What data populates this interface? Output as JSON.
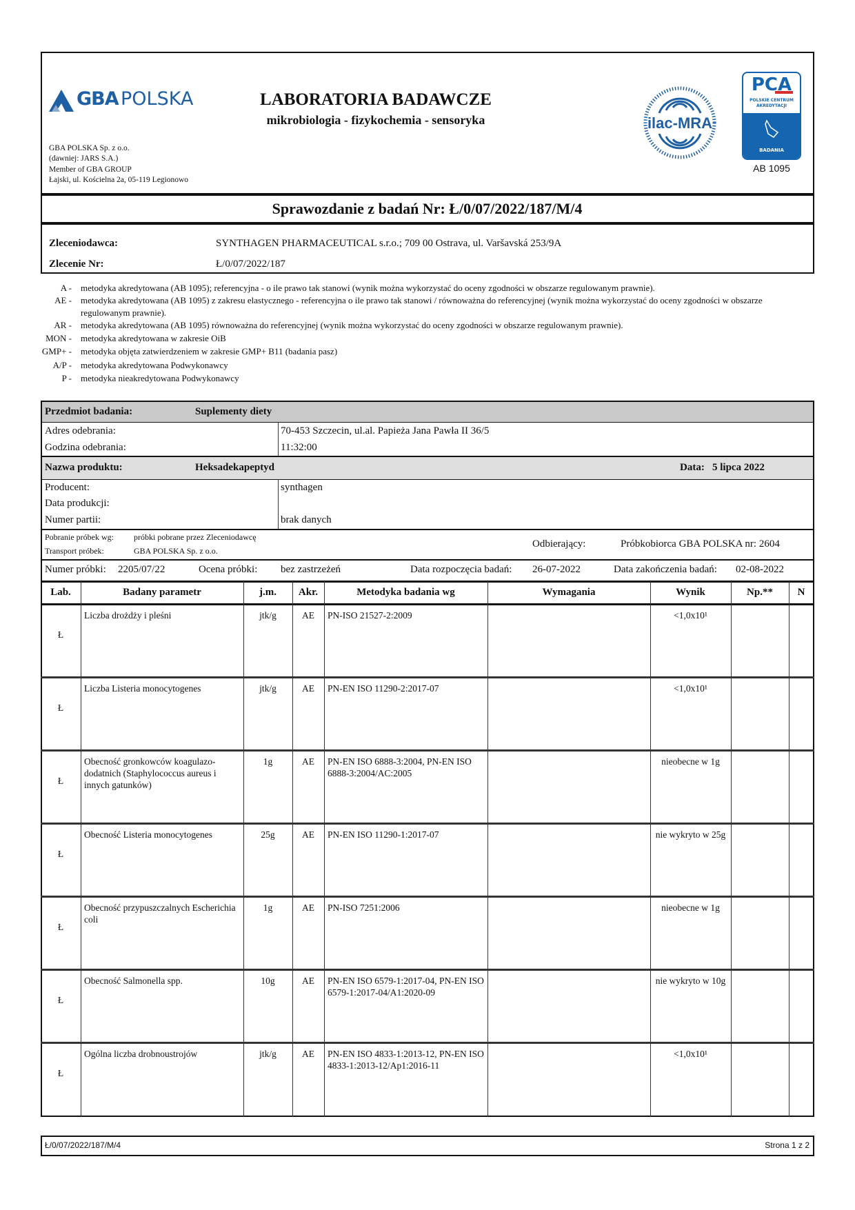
{
  "header": {
    "logo_text_bold": "GBA",
    "logo_text_light": "POLSKA",
    "lab_title": "LABORATORIA BADAWCZE",
    "lab_subtitle": "mikrobiologia - fizykochemia - sensoryka",
    "company_lines": [
      "GBA POLSKA Sp. z o.o.",
      "(dawniej: JARS S.A.)",
      "Member of GBA GROUP",
      "Łajski, ul. Kościelna 2a, 05-119 Legionowo"
    ],
    "ilac_logo": "ilac-MRA",
    "pca_logo": {
      "title": "PCA",
      "line1": "Polskie Centrum",
      "line2": "Akredytacji",
      "badge": "BADANIA"
    },
    "accreditation": "AB 1095",
    "colors": {
      "brand_blue": "#1f5fa3",
      "pca_blue": "#1565b0",
      "pca_red": "#d32f2f"
    }
  },
  "report_title": "Sprawozdanie z badań Nr: Ł/0/07/2022/187/M/4",
  "client": {
    "client_label": "Zleceniodawca:",
    "client_value": "SYNTHAGEN PHARMACEUTICAL s.r.o.; 709 00 Ostrava, ul. Varšavská  253/9A",
    "order_label": "Zlecenie Nr:",
    "order_value": "Ł/0/07/2022/187"
  },
  "legend": [
    {
      "code": "A -",
      "text": "metodyka akredytowana (AB 1095); referencyjna - o ile prawo tak stanowi (wynik można wykorzystać do oceny zgodności w obszarze regulowanym prawnie)."
    },
    {
      "code": "AE -",
      "text": "metodyka akredytowana (AB 1095) z zakresu elastycznego - referencyjna o ile prawo tak stanowi / równoważna do referencyjnej (wynik można wykorzystać do oceny zgodności w obszarze regulowanym prawnie)."
    },
    {
      "code": "AR -",
      "text": "metodyka akredytowana (AB 1095) równoważna do referencyjnej (wynik można wykorzystać do oceny zgodności w obszarze regulowanym prawnie)."
    },
    {
      "code": "MON -",
      "text": "metodyka akredytowana w zakresie OiB"
    },
    {
      "code": "GMP+ -",
      "text": "metodyka objęta zatwierdzeniem w zakresie GMP+ B11 (badania pasz)"
    },
    {
      "code": "A/P -",
      "text": "metodyka akredytowana Podwykonawcy"
    },
    {
      "code": "P -",
      "text": "metodyka nieakredytowana Podwykonawcy"
    }
  ],
  "sample": {
    "subject_label": "Przedmiot badania:",
    "subject_value": "Suplementy diety",
    "address_label": "Adres odebrania:",
    "address_value": "70-453 Szczecin, ul.al. Papieża Jana Pawła II 36/5",
    "time_label": "Godzina odebrania:",
    "time_value": "11:32:00",
    "product_label": "Nazwa produktu:",
    "product_value": "Heksadekapeptyd",
    "date_label": "Data:",
    "date_value": "5 lipca 2022",
    "producer_label": "Producent:",
    "producer_value": "synthagen",
    "prod_date_label": "Data produkcji:",
    "prod_date_value": "",
    "batch_label": "Numer partii:",
    "batch_value": "brak danych",
    "sampling_label": "Pobranie próbek wg:",
    "sampling_value": "próbki pobrane przez Zleceniodawcę",
    "transport_label": "Transport próbek:",
    "transport_value": "GBA POLSKA Sp. z o.o.",
    "receiver_label": "Odbierający:",
    "receiver_value": "Próbkobiorca GBA POLSKA nr: 2604",
    "number_label": "Numer próbki:",
    "number_value": "2205/07/22",
    "assessment_label": "Ocena próbki:",
    "assessment_value": "bez zastrzeżeń",
    "start_label": "Data rozpoczęcia badań:",
    "start_value": "26-07-2022",
    "end_label": "Data zakończenia badań:",
    "end_value": "02-08-2022"
  },
  "table": {
    "columns": [
      "Lab.",
      "Badany parametr",
      "j.m.",
      "Akr.",
      "Metodyka badania wg",
      "Wymagania",
      "Wynik",
      "Np.**",
      "N"
    ],
    "rows": [
      {
        "lab": "Ł",
        "param": "Liczba drożdży i pleśni",
        "unit": "jtk/g",
        "akr": "AE",
        "method": "PN-ISO 21527-2:2009",
        "req": "",
        "result": "<1,0x10¹",
        "np": "",
        "n": ""
      },
      {
        "lab": "Ł",
        "param": "Liczba Listeria monocytogenes",
        "unit": "jtk/g",
        "akr": "AE",
        "method": "PN-EN ISO 11290-2:2017-07",
        "req": "",
        "result": "<1,0x10¹",
        "np": "",
        "n": ""
      },
      {
        "lab": "Ł",
        "param": "Obecność gronkowców koagulazo-dodatnich (Staphylococcus aureus i innych gatunków)",
        "unit": "1g",
        "akr": "AE",
        "method": "PN-EN ISO 6888-3:2004, PN-EN ISO 6888-3:2004/AC:2005",
        "req": "",
        "result": "nieobecne w 1g",
        "np": "",
        "n": ""
      },
      {
        "lab": "Ł",
        "param": "Obecność Listeria monocytogenes",
        "unit": "25g",
        "akr": "AE",
        "method": "PN-EN ISO 11290-1:2017-07",
        "req": "",
        "result": "nie wykryto w 25g",
        "np": "",
        "n": ""
      },
      {
        "lab": "Ł",
        "param": "Obecność przypuszczalnych Escherichia coli",
        "unit": "1g",
        "akr": "AE",
        "method": "PN-ISO 7251:2006",
        "req": "",
        "result": "nieobecne w 1g",
        "np": "",
        "n": ""
      },
      {
        "lab": "Ł",
        "param": "Obecność Salmonella spp.",
        "unit": "10g",
        "akr": "AE",
        "method": "PN-EN ISO 6579-1:2017-04, PN-EN ISO 6579-1:2017-04/A1:2020-09",
        "req": "",
        "result": "nie wykryto w 10g",
        "np": "",
        "n": ""
      },
      {
        "lab": "Ł",
        "param": "Ogólna liczba drobnoustrojów",
        "unit": "jtk/g",
        "akr": "AE",
        "method": "PN-EN ISO 4833-1:2013-12, PN-EN ISO 4833-1:2013-12/Ap1:2016-11",
        "req": "",
        "result": "<1,0x10¹",
        "np": "",
        "n": ""
      }
    ]
  },
  "footer": {
    "report_number": "Ł/0/07/2022/187/M/4",
    "page": "Strona 1 z 2"
  }
}
